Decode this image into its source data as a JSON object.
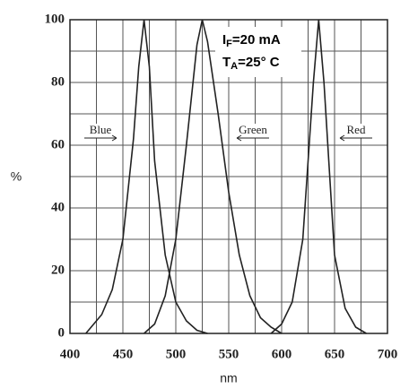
{
  "chart_data": {
    "type": "line",
    "x_label": "nm",
    "y_label": "%",
    "annotation": [
      {
        "main": "I",
        "sub": "F",
        "rest": "=20 mA"
      },
      {
        "main": "T",
        "sub": "A",
        "rest": "=25° C"
      }
    ],
    "series": [
      {
        "name": "Blue",
        "color": "#222222",
        "x": [
          415,
          420,
          430,
          440,
          450,
          460,
          465,
          470,
          475,
          480,
          490,
          500,
          510,
          520,
          530
        ],
        "values": [
          0,
          2,
          6,
          14,
          30,
          62,
          85,
          100,
          85,
          55,
          25,
          10,
          4,
          1,
          0
        ]
      },
      {
        "name": "Green",
        "color": "#222222",
        "x": [
          470,
          480,
          490,
          500,
          510,
          520,
          525,
          530,
          540,
          550,
          560,
          570,
          580,
          590,
          600
        ],
        "values": [
          0,
          3,
          12,
          30,
          60,
          92,
          100,
          93,
          70,
          45,
          25,
          12,
          5,
          2,
          0
        ]
      },
      {
        "name": "Red",
        "color": "#222222",
        "x": [
          590,
          600,
          610,
          620,
          630,
          635,
          640,
          650,
          660,
          670,
          680
        ],
        "values": [
          0,
          3,
          10,
          30,
          80,
          100,
          80,
          25,
          8,
          2,
          0
        ]
      }
    ],
    "xlim": [
      400,
      700
    ],
    "xticks": [
      400,
      450,
      500,
      550,
      600,
      650,
      700
    ],
    "ylim": [
      0,
      100
    ],
    "yticks": [
      0,
      20,
      40,
      60,
      80,
      100
    ],
    "xgrid": [
      400,
      425,
      450,
      475,
      500,
      525,
      550,
      575,
      600,
      625,
      650,
      675,
      700
    ],
    "ygrid": [
      0,
      10,
      20,
      30,
      40,
      50,
      60,
      70,
      80,
      90,
      100
    ],
    "grid": true
  }
}
